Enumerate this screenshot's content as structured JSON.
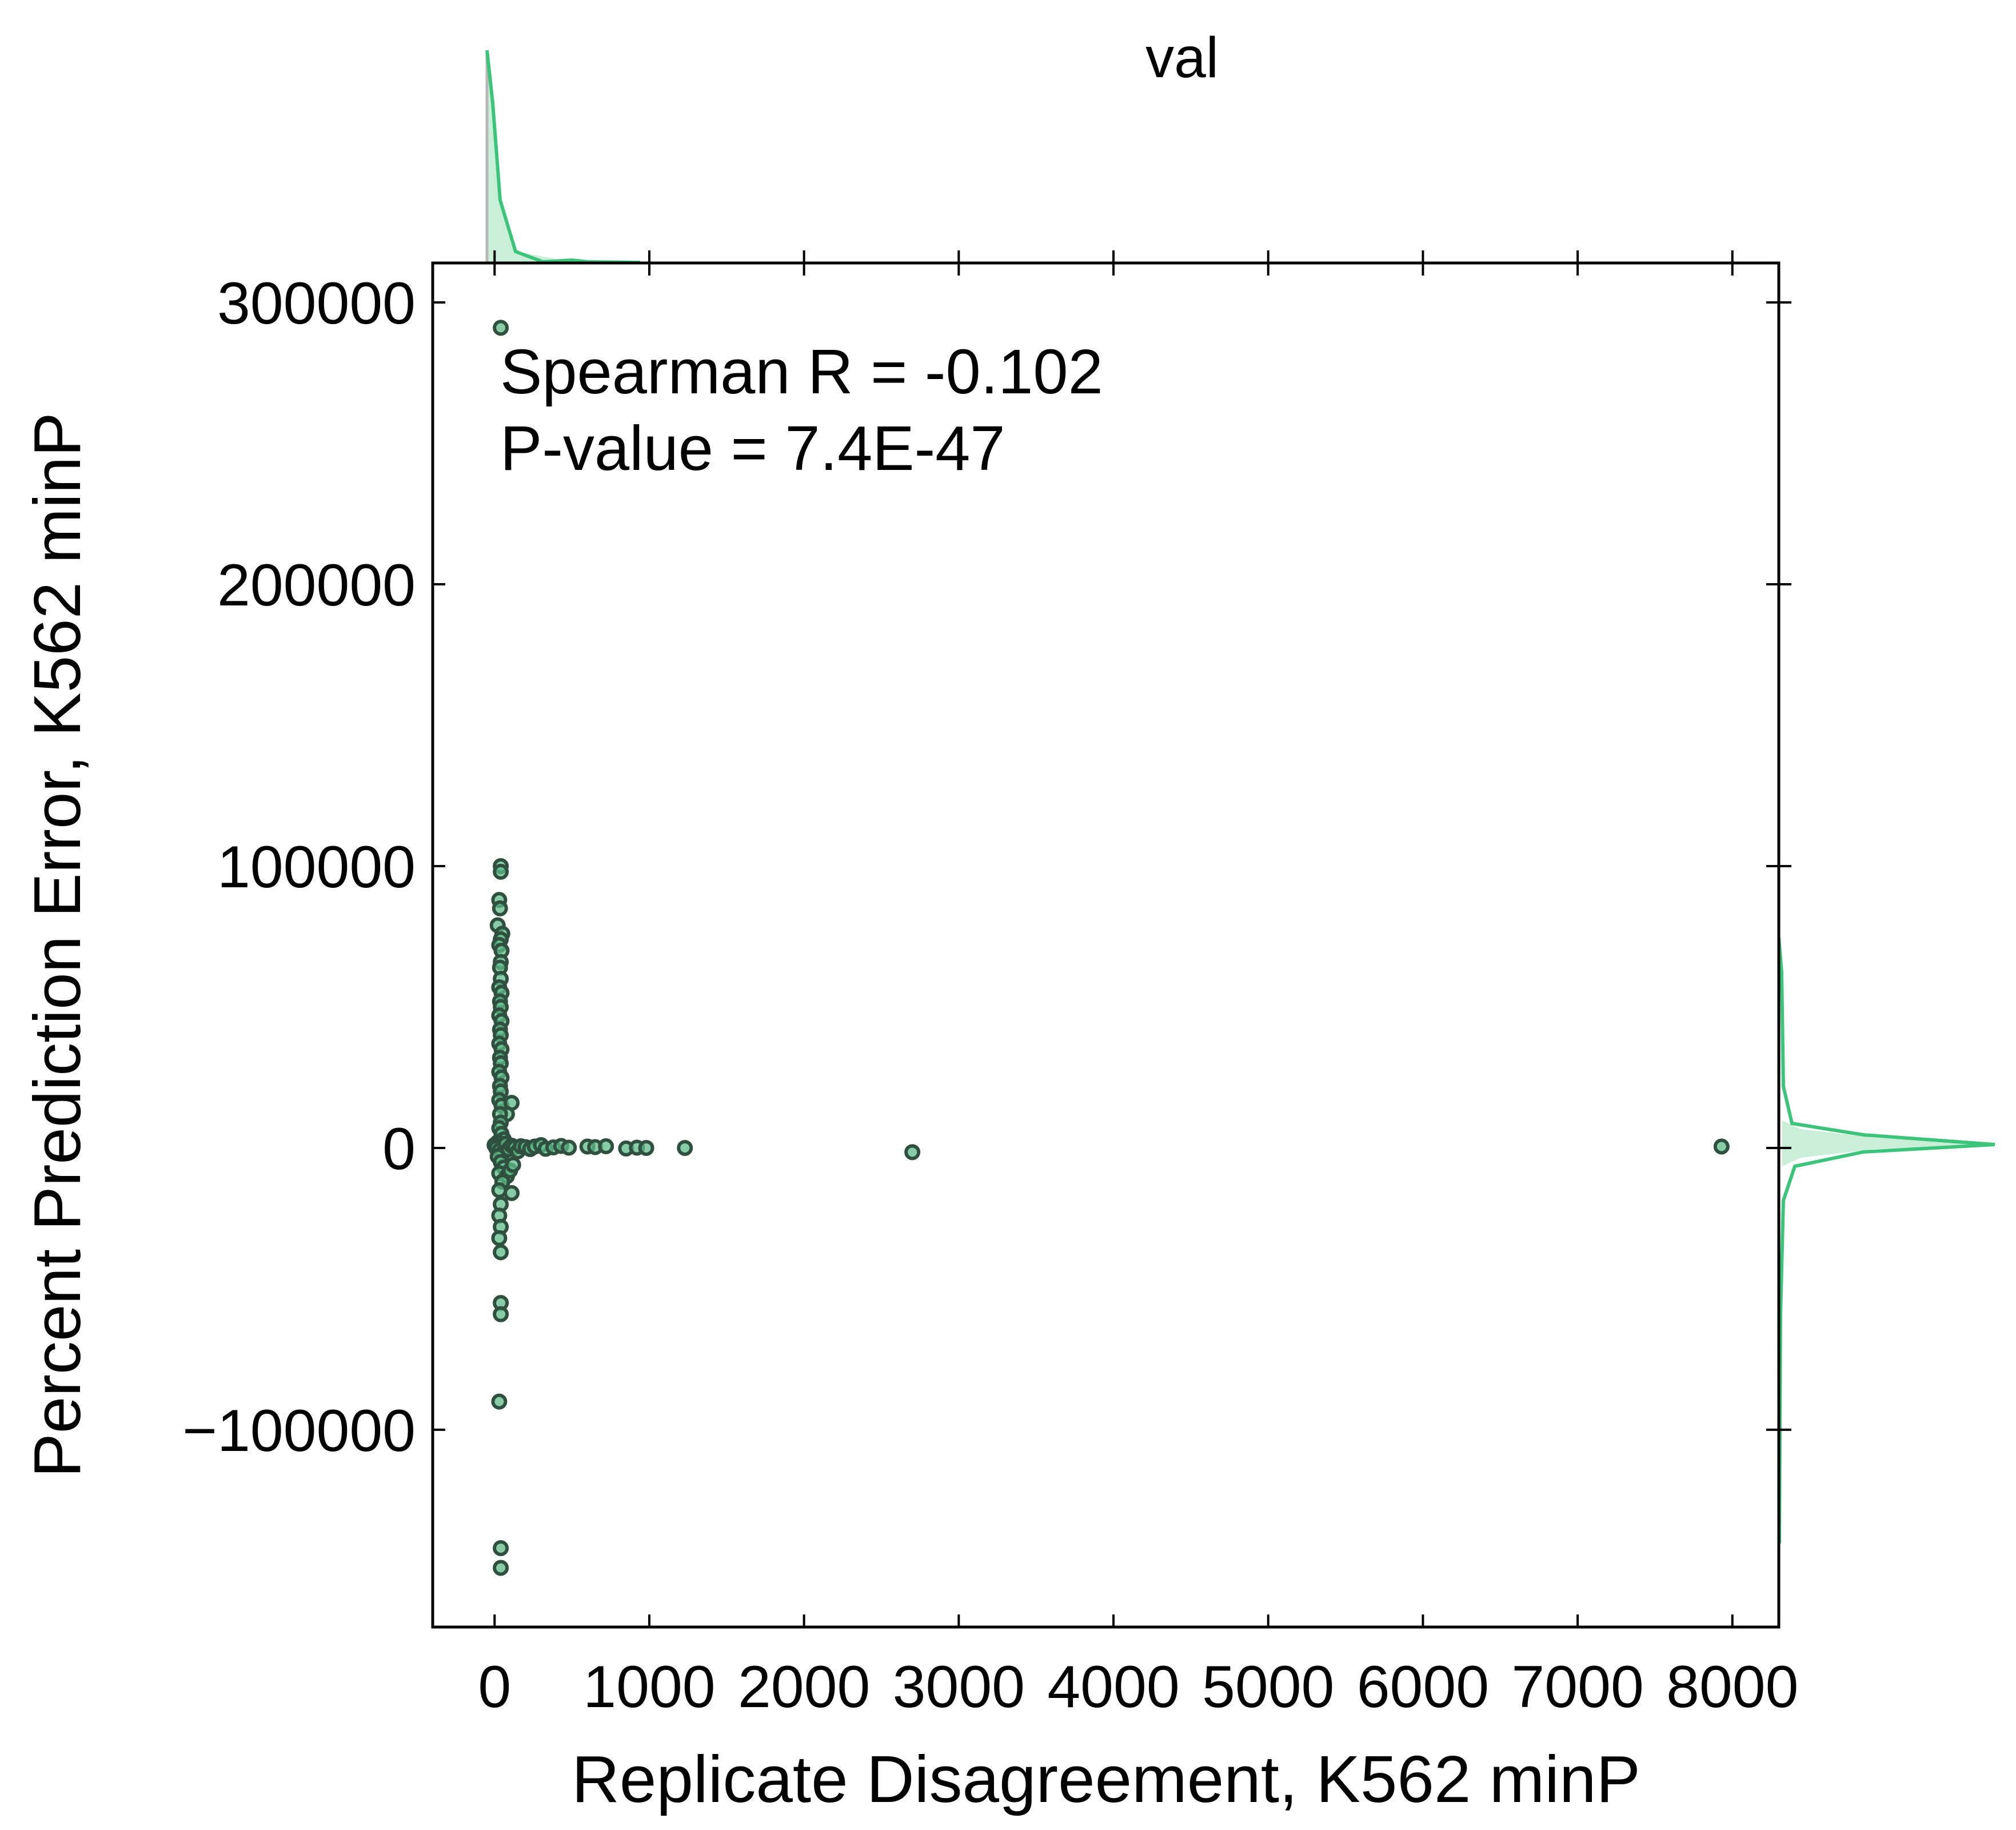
{
  "chart_data": {
    "type": "scatter",
    "title": "val",
    "xlabel": "Replicate Disagreement, K562 minP",
    "ylabel": "Percent Prediction Error, K562 minP",
    "xlim": [
      -400,
      8300
    ],
    "ylim": [
      -170000,
      314000
    ],
    "xticks": [
      0,
      1000,
      2000,
      3000,
      4000,
      5000,
      6000,
      7000,
      8000
    ],
    "xtick_labels": [
      "0",
      "1000",
      "2000",
      "3000",
      "4000",
      "5000",
      "6000",
      "7000",
      "8000"
    ],
    "yticks": [
      -100000,
      0,
      100000,
      200000,
      300000
    ],
    "ytick_labels": [
      "−100000",
      "0",
      "100000",
      "200000",
      "300000"
    ],
    "annotation": {
      "line1": "Spearman R = -0.102",
      "line2": "P-value = 7.4E-47"
    },
    "grid": false,
    "legend": "none",
    "colors": {
      "point_fill": "#5fb98a",
      "point_edge": "#2f4f3f",
      "kde_line": "#3cc47a",
      "kde_fill": "#c9efd8"
    },
    "points": [
      [
        40,
        291000
      ],
      [
        40,
        100000
      ],
      [
        40,
        98000
      ],
      [
        30,
        88000
      ],
      [
        35,
        85000
      ],
      [
        20,
        79000
      ],
      [
        50,
        76000
      ],
      [
        40,
        74000
      ],
      [
        30,
        72000
      ],
      [
        45,
        70000
      ],
      [
        40,
        66000
      ],
      [
        35,
        64000
      ],
      [
        40,
        60000
      ],
      [
        30,
        57000
      ],
      [
        45,
        55000
      ],
      [
        35,
        52000
      ],
      [
        40,
        50000
      ],
      [
        30,
        47000
      ],
      [
        45,
        45000
      ],
      [
        35,
        42000
      ],
      [
        40,
        40000
      ],
      [
        30,
        37000
      ],
      [
        45,
        35000
      ],
      [
        35,
        32000
      ],
      [
        40,
        30000
      ],
      [
        30,
        27000
      ],
      [
        45,
        25000
      ],
      [
        35,
        22000
      ],
      [
        40,
        20000
      ],
      [
        30,
        17000
      ],
      [
        45,
        15000
      ],
      [
        110,
        16000
      ],
      [
        80,
        12000
      ],
      [
        35,
        12000
      ],
      [
        40,
        9000
      ],
      [
        30,
        7000
      ],
      [
        45,
        5000
      ],
      [
        60,
        3000
      ],
      [
        20,
        2000
      ],
      [
        0,
        1000
      ],
      [
        10,
        0
      ],
      [
        30,
        -1000
      ],
      [
        50,
        -2000
      ],
      [
        70,
        1500
      ],
      [
        90,
        -500
      ],
      [
        110,
        800
      ],
      [
        130,
        200
      ],
      [
        150,
        -1200
      ],
      [
        170,
        600
      ],
      [
        200,
        300
      ],
      [
        230,
        -400
      ],
      [
        260,
        500
      ],
      [
        300,
        1000
      ],
      [
        330,
        -300
      ],
      [
        380,
        200
      ],
      [
        430,
        700
      ],
      [
        480,
        100
      ],
      [
        600,
        500
      ],
      [
        650,
        300
      ],
      [
        720,
        600
      ],
      [
        850,
        -200
      ],
      [
        920,
        100
      ],
      [
        980,
        0
      ],
      [
        1230,
        0
      ],
      [
        2700,
        -1500
      ],
      [
        7930,
        500
      ],
      [
        20,
        -3000
      ],
      [
        40,
        -5000
      ],
      [
        60,
        -7000
      ],
      [
        30,
        -9000
      ],
      [
        80,
        -10000
      ],
      [
        100,
        -8000
      ],
      [
        120,
        -6000
      ],
      [
        50,
        -12000
      ],
      [
        30,
        -15000
      ],
      [
        110,
        -16000
      ],
      [
        40,
        -20000
      ],
      [
        30,
        -24000
      ],
      [
        40,
        -28000
      ],
      [
        30,
        -32000
      ],
      [
        40,
        -37000
      ],
      [
        40,
        -55000
      ],
      [
        40,
        -59000
      ],
      [
        30,
        -90000
      ],
      [
        40,
        -142000
      ],
      [
        40,
        -149000
      ]
    ]
  }
}
